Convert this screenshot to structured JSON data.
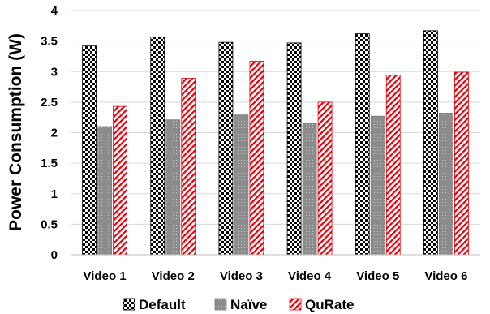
{
  "chart_data": {
    "type": "bar",
    "title": "",
    "xlabel": "",
    "ylabel": "Power Consumption (W)",
    "ylim": [
      0,
      4
    ],
    "yticks": [
      0,
      0.5,
      1,
      1.5,
      2,
      2.5,
      3,
      3.5,
      4
    ],
    "ytick_labels": [
      "0",
      "0.5",
      "1",
      "1.5",
      "2",
      "2.5",
      "3",
      "3.5",
      "4"
    ],
    "grid": true,
    "legend_position": "bottom",
    "categories": [
      "Video 1",
      "Video 2",
      "Video 3",
      "Video 4",
      "Video 5",
      "Video 6"
    ],
    "series": [
      {
        "name": "Default",
        "values": [
          3.42,
          3.57,
          3.48,
          3.47,
          3.62,
          3.67
        ],
        "pattern": "checkerboard",
        "color": "#000000"
      },
      {
        "name": "Naïve",
        "values": [
          2.1,
          2.21,
          2.29,
          2.15,
          2.27,
          2.32
        ],
        "pattern": "dotted-gray",
        "color": "#808080"
      },
      {
        "name": "QuRate",
        "values": [
          2.43,
          2.89,
          3.17,
          2.5,
          2.94,
          2.99
        ],
        "pattern": "red-diagonal-stripes",
        "color": "#e8000b"
      }
    ]
  }
}
